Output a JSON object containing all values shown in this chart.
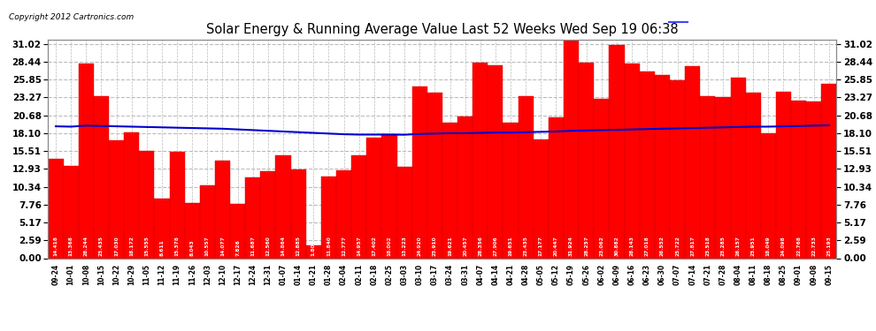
{
  "title": "Solar Energy & Running Average Value Last 52 Weeks Wed Sep 19 06:38",
  "copyright": "Copyright 2012 Cartronics.com",
  "bar_color": "#ff0000",
  "avg_line_color": "#0000cc",
  "background_color": "#ffffff",
  "plot_bg_color": "#ffffff",
  "grid_color": "#aaaaaa",
  "yticks": [
    0.0,
    2.59,
    5.17,
    7.76,
    10.34,
    12.93,
    15.51,
    18.1,
    20.68,
    23.27,
    25.85,
    28.44,
    31.02
  ],
  "categories": [
    "09-24",
    "10-01",
    "10-08",
    "10-15",
    "10-22",
    "10-29",
    "11-05",
    "11-12",
    "11-19",
    "11-26",
    "12-03",
    "12-10",
    "12-17",
    "12-24",
    "12-31",
    "01-07",
    "01-14",
    "01-21",
    "01-28",
    "02-04",
    "02-11",
    "02-18",
    "02-25",
    "03-03",
    "03-10",
    "03-17",
    "03-24",
    "03-31",
    "04-07",
    "04-14",
    "04-21",
    "04-28",
    "05-05",
    "05-12",
    "05-19",
    "05-26",
    "06-02",
    "06-09",
    "06-16",
    "06-23",
    "06-30",
    "07-07",
    "07-14",
    "07-21",
    "07-28",
    "08-04",
    "08-11",
    "08-18",
    "08-25",
    "09-01",
    "09-08",
    "09-15"
  ],
  "weekly_values": [
    14.418,
    13.368,
    28.244,
    23.435,
    17.03,
    18.172,
    15.555,
    8.611,
    15.378,
    8.043,
    10.557,
    14.077,
    7.826,
    11.687,
    12.56,
    14.864,
    12.885,
    1.802,
    11.84,
    12.777,
    14.957,
    17.402,
    18.002,
    13.223,
    24.92,
    23.91,
    19.621,
    20.457,
    28.356,
    27.906,
    19.651,
    23.435,
    17.177,
    20.447,
    31.924,
    28.257,
    23.062,
    30.882,
    28.143,
    27.018,
    26.552,
    25.722,
    27.817,
    23.518,
    23.285,
    26.157,
    23.951,
    18.049,
    24.098,
    22.768,
    22.733,
    25.193
  ],
  "avg_values": [
    19.1,
    19.05,
    19.2,
    19.15,
    19.1,
    19.05,
    19.0,
    18.95,
    18.9,
    18.85,
    18.8,
    18.75,
    18.65,
    18.55,
    18.45,
    18.35,
    18.25,
    18.15,
    18.05,
    17.95,
    17.9,
    17.9,
    17.9,
    17.88,
    18.0,
    18.05,
    18.1,
    18.1,
    18.15,
    18.2,
    18.2,
    18.25,
    18.3,
    18.35,
    18.45,
    18.5,
    18.55,
    18.6,
    18.65,
    18.7,
    18.75,
    18.8,
    18.85,
    18.9,
    18.95,
    19.0,
    19.05,
    19.05,
    19.1,
    19.15,
    19.2,
    19.25
  ],
  "legend_avg_bg": "#000080",
  "legend_weekly_bg": "#cc0000",
  "ymax": 31.02,
  "ymin": 0.0
}
